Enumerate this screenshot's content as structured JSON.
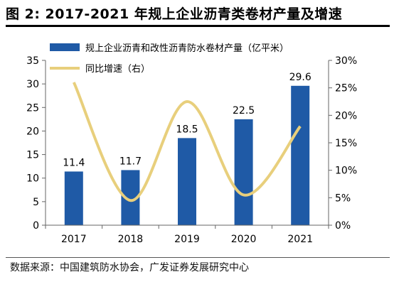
{
  "figure": {
    "title": "图 2:  2017-2021 年规上企业沥青类卷材产量及增速",
    "source": "数据来源：中国建筑防水协会，广发证券发展研究中心"
  },
  "colors": {
    "bar": "#1f5aa6",
    "line": "#e8cf7c",
    "axis": "#666666",
    "text": "#000000"
  },
  "chart_data": {
    "type": "bar",
    "categories": [
      "2017",
      "2018",
      "2019",
      "2020",
      "2021"
    ],
    "series": [
      {
        "name": "规上企业沥青和改性沥青防水卷材产量（亿平米）",
        "type": "bar",
        "axis": "left",
        "values": [
          11.4,
          11.7,
          18.5,
          22.5,
          29.6
        ],
        "labels": [
          "11.4",
          "11.7",
          "18.5",
          "22.5",
          "29.6"
        ]
      },
      {
        "name": "同比增速（右）",
        "type": "line",
        "smooth": true,
        "axis": "right",
        "values": [
          0.26,
          0.045,
          0.225,
          0.055,
          0.18
        ]
      }
    ],
    "y_left": {
      "range": [
        0,
        35
      ],
      "ticks": [
        0,
        5,
        10,
        15,
        20,
        25,
        30,
        35
      ],
      "tick_labels": [
        "0",
        "5",
        "10",
        "15",
        "20",
        "25",
        "30",
        "35"
      ]
    },
    "y_right": {
      "range": [
        0,
        0.3
      ],
      "ticks": [
        0,
        0.05,
        0.1,
        0.15,
        0.2,
        0.25,
        0.3
      ],
      "tick_labels": [
        "0%",
        "5%",
        "10%",
        "15%",
        "20%",
        "25%",
        "30%"
      ]
    },
    "grid": false,
    "legend_position": "top-left"
  }
}
